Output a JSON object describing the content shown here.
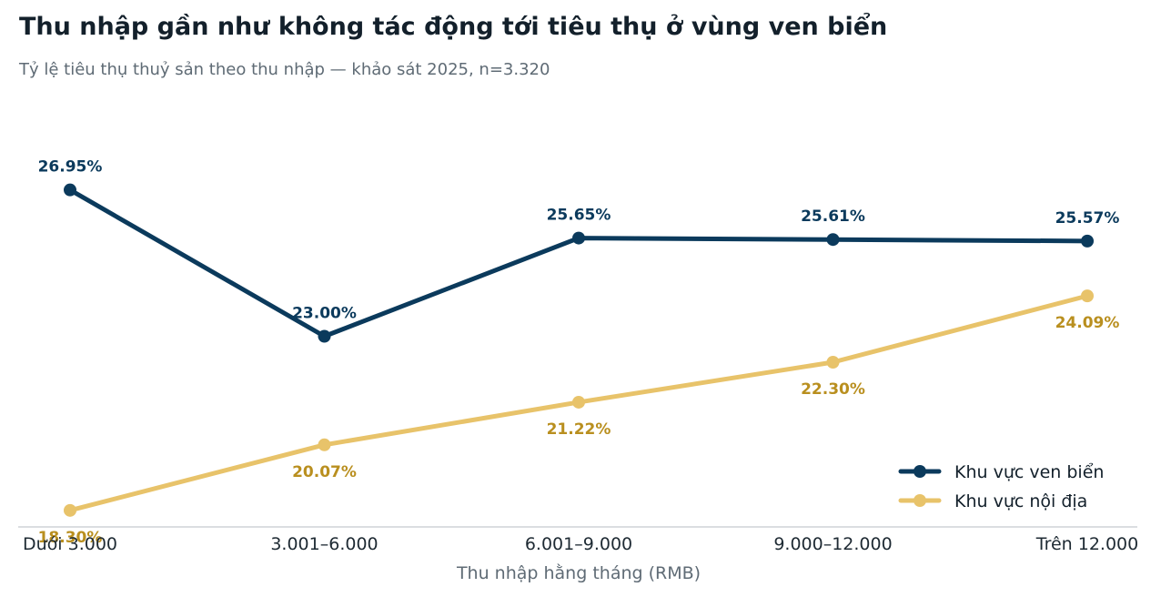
{
  "title": "Thu nhập gần như không tác động tới tiêu thụ ở vùng ven biển",
  "subtitle": "Tỷ lệ tiêu thụ thuỷ sản theo thu nhập — khảo sát 2025, n=3.320",
  "chart_data": {
    "type": "line",
    "title": "Thu nhập gần như không tác động tới tiêu thụ ở vùng ven biển",
    "subtitle": "Tỷ lệ tiêu thụ thuỷ sản theo thu nhập — khảo sát 2025, n=3.320",
    "xlabel": "Thu nhập hằng tháng (RMB)",
    "ylabel": "",
    "categories": [
      "Dưới 3.000",
      "3.001–6.000",
      "6.001–9.000",
      "9.000–12.000",
      "Trên 12.000"
    ],
    "ylim": [
      16,
      30
    ],
    "grid": false,
    "legend_position": "bottom-right",
    "series": [
      {
        "name": "Khu vực ven biển",
        "values": [
          26.95,
          23.0,
          25.65,
          25.61,
          25.57
        ],
        "labels": [
          "26.95%",
          "23.00%",
          "25.65%",
          "25.61%",
          "25.57%"
        ],
        "color": "#0b3a5c",
        "label_color": "#0b3a5c",
        "label_position": "above"
      },
      {
        "name": "Khu vực nội địa",
        "values": [
          18.3,
          20.07,
          21.22,
          22.3,
          24.09
        ],
        "labels": [
          "18.30%",
          "20.07%",
          "21.22%",
          "22.30%",
          "24.09%"
        ],
        "color": "#e8c36a",
        "label_color": "#b98f1f",
        "label_position": "below"
      }
    ]
  }
}
